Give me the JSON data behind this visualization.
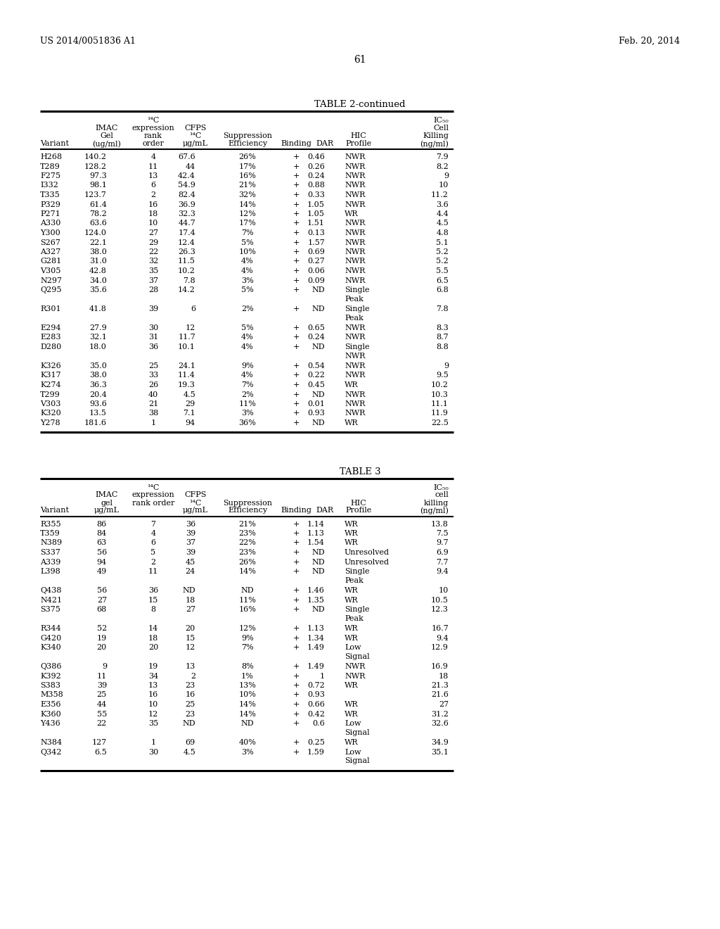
{
  "header_left": "US 2014/0051836 A1",
  "header_right": "Feb. 20, 2014",
  "page_number": "61",
  "table2_title": "TABLE 2-continued",
  "table3_title": "TABLE 3",
  "table2_data": [
    [
      "H268",
      "140.2",
      "4",
      "67.6",
      "26%",
      "+",
      "0.46",
      "NWR",
      "7.9"
    ],
    [
      "T289",
      "128.2",
      "11",
      "44",
      "17%",
      "+",
      "0.26",
      "NWR",
      "8.2"
    ],
    [
      "F275",
      "97.3",
      "13",
      "42.4",
      "16%",
      "+",
      "0.24",
      "NWR",
      "9"
    ],
    [
      "I332",
      "98.1",
      "6",
      "54.9",
      "21%",
      "+",
      "0.88",
      "NWR",
      "10"
    ],
    [
      "T335",
      "123.7",
      "2",
      "82.4",
      "32%",
      "+",
      "0.33",
      "NWR",
      "11.2"
    ],
    [
      "P329",
      "61.4",
      "16",
      "36.9",
      "14%",
      "+",
      "1.05",
      "NWR",
      "3.6"
    ],
    [
      "P271",
      "78.2",
      "18",
      "32.3",
      "12%",
      "+",
      "1.05",
      "WR",
      "4.4"
    ],
    [
      "A330",
      "63.6",
      "10",
      "44.7",
      "17%",
      "+",
      "1.51",
      "NWR",
      "4.5"
    ],
    [
      "Y300",
      "124.0",
      "27",
      "17.4",
      "7%",
      "+",
      "0.13",
      "NWR",
      "4.8"
    ],
    [
      "S267",
      "22.1",
      "29",
      "12.4",
      "5%",
      "+",
      "1.57",
      "NWR",
      "5.1"
    ],
    [
      "A327",
      "38.0",
      "22",
      "26.3",
      "10%",
      "+",
      "0.69",
      "NWR",
      "5.2"
    ],
    [
      "G281",
      "31.0",
      "32",
      "11.5",
      "4%",
      "+",
      "0.27",
      "NWR",
      "5.2"
    ],
    [
      "V305",
      "42.8",
      "35",
      "10.2",
      "4%",
      "+",
      "0.06",
      "NWR",
      "5.5"
    ],
    [
      "N297",
      "34.0",
      "37",
      "7.8",
      "3%",
      "+",
      "0.09",
      "NWR",
      "6.5"
    ],
    [
      "Q295",
      "35.6",
      "28",
      "14.2",
      "5%",
      "+",
      "ND",
      "Single\nPeak",
      "6.8"
    ],
    [
      "R301",
      "41.8",
      "39",
      "6",
      "2%",
      "+",
      "ND",
      "Single\nPeak",
      "7.8"
    ],
    [
      "E294",
      "27.9",
      "30",
      "12",
      "5%",
      "+",
      "0.65",
      "NWR",
      "8.3"
    ],
    [
      "E283",
      "32.1",
      "31",
      "11.7",
      "4%",
      "+",
      "0.24",
      "NWR",
      "8.7"
    ],
    [
      "D280",
      "18.0",
      "36",
      "10.1",
      "4%",
      "+",
      "ND",
      "Single\nNWR",
      "8.8"
    ],
    [
      "K326",
      "35.0",
      "25",
      "24.1",
      "9%",
      "+",
      "0.54",
      "NWR",
      "9"
    ],
    [
      "K317",
      "38.0",
      "33",
      "11.4",
      "4%",
      "+",
      "0.22",
      "NWR",
      "9.5"
    ],
    [
      "K274",
      "36.3",
      "26",
      "19.3",
      "7%",
      "+",
      "0.45",
      "WR",
      "10.2"
    ],
    [
      "T299",
      "20.4",
      "40",
      "4.5",
      "2%",
      "+",
      "ND",
      "NWR",
      "10.3"
    ],
    [
      "V303",
      "93.6",
      "21",
      "29",
      "11%",
      "+",
      "0.01",
      "NWR",
      "11.1"
    ],
    [
      "K320",
      "13.5",
      "38",
      "7.1",
      "3%",
      "+",
      "0.93",
      "NWR",
      "11.9"
    ],
    [
      "Y278",
      "181.6",
      "1",
      "94",
      "36%",
      "+",
      "ND",
      "WR",
      "22.5"
    ]
  ],
  "table3_data": [
    [
      "R355",
      "86",
      "7",
      "36",
      "21%",
      "+",
      "1.14",
      "WR",
      "13.8"
    ],
    [
      "T359",
      "84",
      "4",
      "39",
      "23%",
      "+",
      "1.13",
      "WR",
      "7.5"
    ],
    [
      "N389",
      "63",
      "6",
      "37",
      "22%",
      "+",
      "1.54",
      "WR",
      "9.7"
    ],
    [
      "S337",
      "56",
      "5",
      "39",
      "23%",
      "+",
      "ND",
      "Unresolved",
      "6.9"
    ],
    [
      "A339",
      "94",
      "2",
      "45",
      "26%",
      "+",
      "ND",
      "Unresolved",
      "7.7"
    ],
    [
      "L398",
      "49",
      "11",
      "24",
      "14%",
      "+",
      "ND",
      "Single\nPeak",
      "9.4"
    ],
    [
      "Q438",
      "56",
      "36",
      "ND",
      "ND",
      "+",
      "1.46",
      "WR",
      "10"
    ],
    [
      "N421",
      "27",
      "15",
      "18",
      "11%",
      "+",
      "1.35",
      "WR",
      "10.5"
    ],
    [
      "S375",
      "68",
      "8",
      "27",
      "16%",
      "+",
      "ND",
      "Single\nPeak",
      "12.3"
    ],
    [
      "R344",
      "52",
      "14",
      "20",
      "12%",
      "+",
      "1.13",
      "WR",
      "16.7"
    ],
    [
      "G420",
      "19",
      "18",
      "15",
      "9%",
      "+",
      "1.34",
      "WR",
      "9.4"
    ],
    [
      "K340",
      "20",
      "20",
      "12",
      "7%",
      "+",
      "1.49",
      "Low\nSignal",
      "12.9"
    ],
    [
      "Q386",
      "9",
      "19",
      "13",
      "8%",
      "+",
      "1.49",
      "NWR",
      "16.9"
    ],
    [
      "K392",
      "11",
      "34",
      "2",
      "1%",
      "+",
      "1",
      "NWR",
      "18"
    ],
    [
      "S383",
      "39",
      "13",
      "23",
      "13%",
      "+",
      "0.72",
      "WR",
      "21.3"
    ],
    [
      "M358",
      "25",
      "16",
      "16",
      "10%",
      "+",
      "0.93",
      "",
      "21.6"
    ],
    [
      "E356",
      "44",
      "10",
      "25",
      "14%",
      "+",
      "0.66",
      "WR",
      "27"
    ],
    [
      "K360",
      "55",
      "12",
      "23",
      "14%",
      "+",
      "0.42",
      "WR",
      "31.2"
    ],
    [
      "Y436",
      "22",
      "35",
      "ND",
      "ND",
      "+",
      "0.6",
      "Low\nSignal",
      "32.6"
    ],
    [
      "N384",
      "127",
      "1",
      "69",
      "40%",
      "+",
      "0.25",
      "WR",
      "34.9"
    ],
    [
      "Q342",
      "6.5",
      "30",
      "4.5",
      "3%",
      "+",
      "1.59",
      "Low\nSignal",
      "35.1"
    ]
  ]
}
